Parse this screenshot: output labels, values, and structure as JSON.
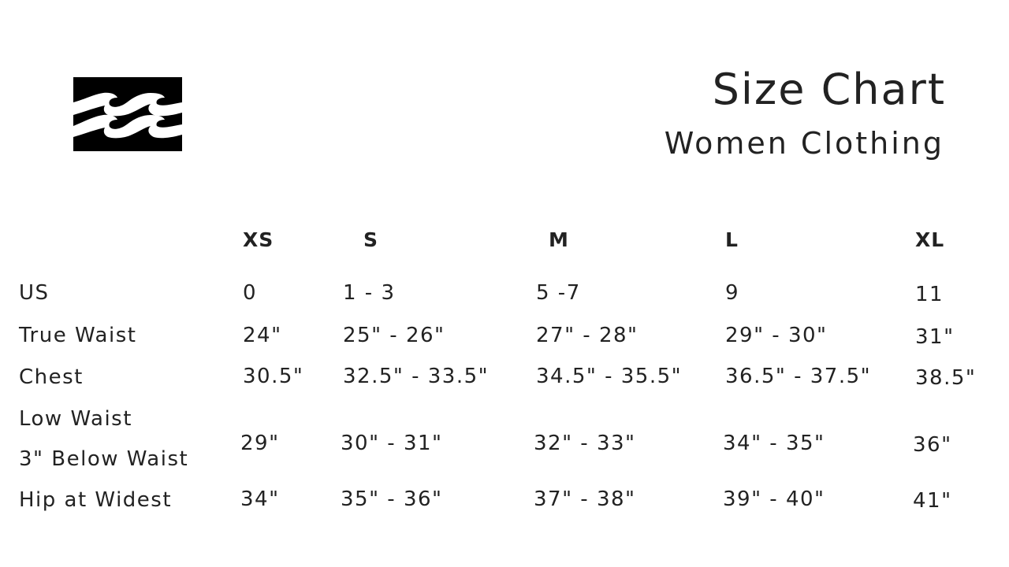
{
  "header": {
    "title": "Size Chart",
    "subtitle": "Women Clothing",
    "logo": "wave-logo"
  },
  "table": {
    "columns": [
      "XS",
      "S",
      "M",
      "L",
      "XL"
    ],
    "rows": [
      {
        "label": "US",
        "values": [
          "0",
          "1 - 3",
          "5 -7",
          "9",
          "11"
        ]
      },
      {
        "label": "True Waist",
        "values": [
          "24\"",
          "25\" - 26\"",
          "27\" - 28\"",
          "29\" - 30\"",
          "31\""
        ]
      },
      {
        "label": "Chest",
        "values": [
          "30.5\"",
          "32.5\" - 33.5\"",
          "34.5\" - 35.5\"",
          "36.5\" - 37.5\"",
          "38.5\""
        ]
      },
      {
        "label": "Low Waist",
        "label2": "3\" Below Waist",
        "values": [
          "29\"",
          "30\" - 31\"",
          "32\" - 33\"",
          "34\" - 35\"",
          "36\""
        ]
      },
      {
        "label": "Hip at Widest",
        "values": [
          "34\"",
          "35\" - 36\"",
          "37\" - 38\"",
          "39\" - 40\"",
          "41\""
        ]
      }
    ]
  }
}
